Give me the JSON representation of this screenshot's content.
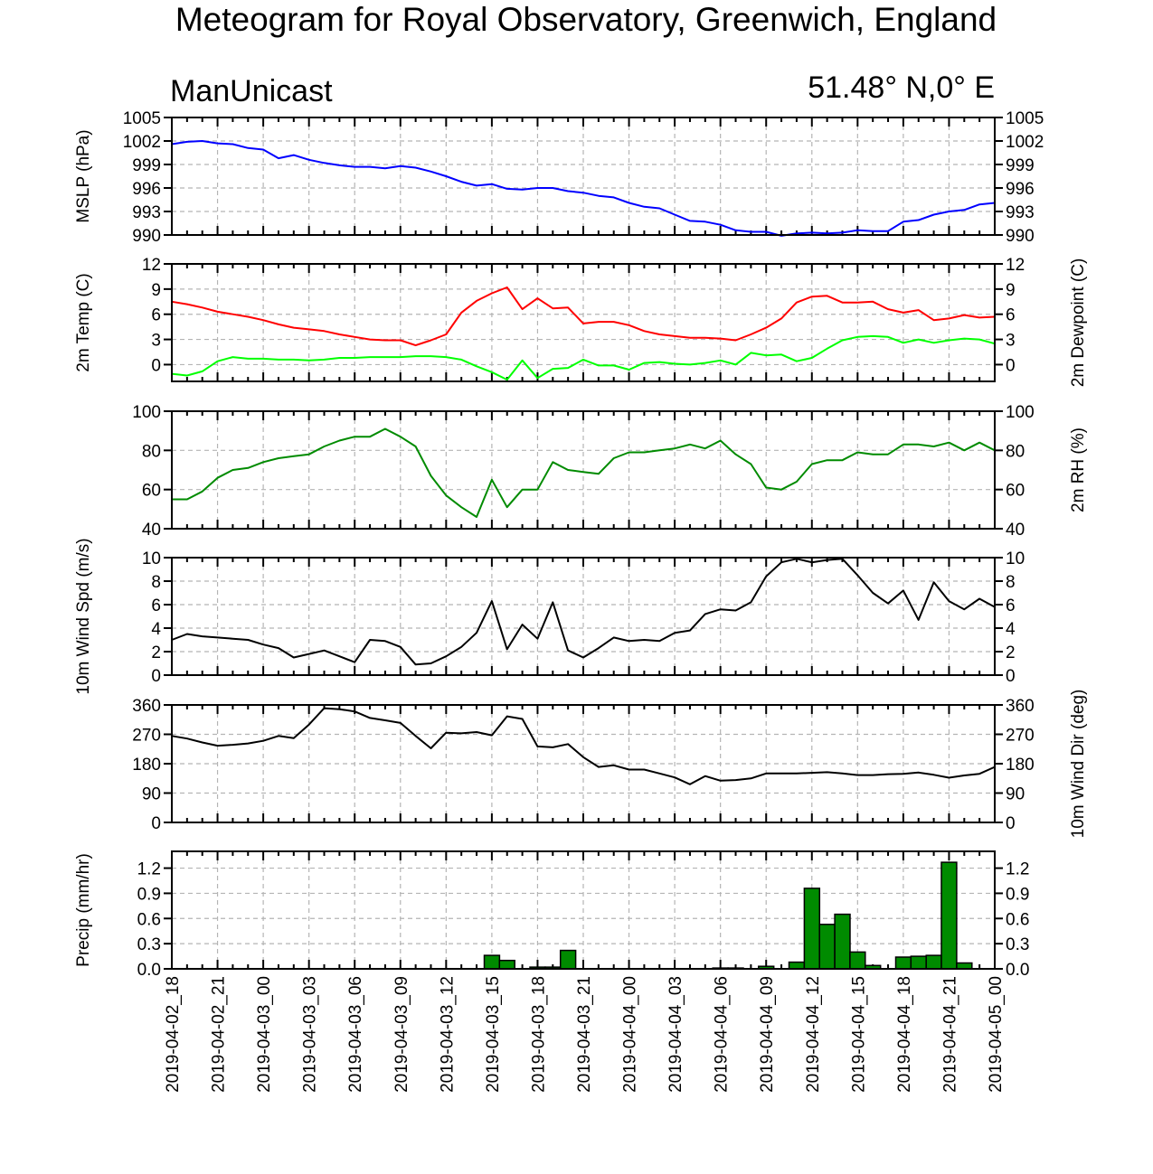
{
  "title": "Meteogram for Royal Observatory, Greenwich, England",
  "model": "ManUnicast",
  "location": "51.48° N,0° E",
  "x_labels": [
    "2019-04-02_18",
    "2019-04-02_21",
    "2019-04-03_00",
    "2019-04-03_03",
    "2019-04-03_06",
    "2019-04-03_09",
    "2019-04-03_12",
    "2019-04-03_15",
    "2019-04-03_18",
    "2019-04-03_21",
    "2019-04-04_00",
    "2019-04-04_03",
    "2019-04-04_06",
    "2019-04-04_09",
    "2019-04-04_12",
    "2019-04-04_15",
    "2019-04-04_18",
    "2019-04-04_21",
    "2019-04-05_00"
  ],
  "chart_data": [
    {
      "type": "line",
      "ylabel": "MSLP (hPa)",
      "ylim": [
        990,
        1005
      ],
      "yticks": [
        "1005",
        "1002",
        "999",
        "996",
        "993",
        "990"
      ],
      "grid": true,
      "x": [
        0,
        1,
        2,
        3,
        4,
        5,
        6,
        7,
        8,
        9,
        10,
        11,
        12,
        13,
        14,
        15,
        16,
        17,
        18,
        19,
        20,
        21,
        22,
        23,
        24,
        25,
        26,
        27,
        28,
        29,
        30,
        31,
        32,
        33,
        34,
        35,
        36,
        37,
        38,
        39,
        40,
        41,
        42,
        43,
        44,
        45,
        46,
        47,
        48,
        49,
        50,
        51,
        52,
        53,
        54
      ],
      "series": [
        {
          "color": "#0000ff",
          "values": [
            1001.6,
            1001.9,
            1002.0,
            1001.7,
            1001.6,
            1001.1,
            1000.9,
            999.8,
            1000.2,
            999.6,
            999.2,
            998.9,
            998.7,
            998.7,
            998.5,
            998.8,
            998.6,
            998.1,
            997.5,
            996.8,
            996.3,
            996.5,
            995.9,
            995.8,
            996.0,
            996.0,
            995.6,
            995.4,
            995.0,
            994.8,
            994.1,
            993.6,
            993.4,
            992.6,
            991.8,
            991.7,
            991.3,
            990.6,
            990.4,
            990.4,
            989.9,
            990.2,
            990.3,
            990.2,
            990.3,
            990.6,
            990.5,
            990.5,
            991.7,
            991.9,
            992.6,
            993.0,
            993.2,
            993.9,
            994.1
          ]
        }
      ]
    },
    {
      "type": "line",
      "ylabel": "2m Temp (C)",
      "ylabel_right": "2m Dewpoint (C)",
      "ylim": [
        -2,
        12
      ],
      "yticks": [
        "12",
        "9",
        "6",
        "3",
        "0"
      ],
      "grid": true,
      "x": [
        0,
        1,
        2,
        3,
        4,
        5,
        6,
        7,
        8,
        9,
        10,
        11,
        12,
        13,
        14,
        15,
        16,
        17,
        18,
        19,
        20,
        21,
        22,
        23,
        24,
        25,
        26,
        27,
        28,
        29,
        30,
        31,
        32,
        33,
        34,
        35,
        36,
        37,
        38,
        39,
        40,
        41,
        42,
        43,
        44,
        45,
        46,
        47,
        48,
        49,
        50,
        51,
        52,
        53,
        54
      ],
      "series": [
        {
          "color": "#ff0000",
          "values": [
            7.5,
            7.2,
            6.8,
            6.3,
            6.0,
            5.7,
            5.3,
            4.8,
            4.4,
            4.2,
            4.0,
            3.6,
            3.3,
            3.0,
            2.9,
            2.9,
            2.3,
            2.9,
            3.6,
            6.2,
            7.6,
            8.5,
            9.2,
            6.6,
            7.9,
            6.7,
            6.8,
            4.9,
            5.1,
            5.1,
            4.7,
            4.0,
            3.6,
            3.4,
            3.2,
            3.2,
            3.1,
            2.9,
            3.6,
            4.4,
            5.5,
            7.4,
            8.1,
            8.2,
            7.4,
            7.4,
            7.5,
            6.6,
            6.2,
            6.5,
            5.3,
            5.5,
            5.9,
            5.6,
            5.7
          ]
        },
        {
          "color": "#00ff00",
          "values": [
            -1.1,
            -1.3,
            -0.8,
            0.4,
            0.9,
            0.7,
            0.7,
            0.6,
            0.6,
            0.5,
            0.6,
            0.8,
            0.8,
            0.9,
            0.9,
            0.9,
            1.0,
            1.0,
            0.9,
            0.6,
            -0.2,
            -0.9,
            -1.8,
            0.5,
            -1.6,
            -0.5,
            -0.4,
            0.6,
            -0.1,
            -0.1,
            -0.6,
            0.2,
            0.3,
            0.1,
            0.0,
            0.2,
            0.5,
            0.0,
            1.4,
            1.1,
            1.2,
            0.4,
            0.8,
            1.9,
            2.9,
            3.3,
            3.4,
            3.3,
            2.6,
            3.0,
            2.6,
            2.9,
            3.1,
            3.0,
            2.5
          ]
        }
      ]
    },
    {
      "type": "line",
      "ylabel_right": "2m RH (%)",
      "ylim": [
        40,
        100
      ],
      "yticks": [
        "100",
        "80",
        "60",
        "40"
      ],
      "grid": true,
      "x": [
        0,
        1,
        2,
        3,
        4,
        5,
        6,
        7,
        8,
        9,
        10,
        11,
        12,
        13,
        14,
        15,
        16,
        17,
        18,
        19,
        20,
        21,
        22,
        23,
        24,
        25,
        26,
        27,
        28,
        29,
        30,
        31,
        32,
        33,
        34,
        35,
        36,
        37,
        38,
        39,
        40,
        41,
        42,
        43,
        44,
        45,
        46,
        47,
        48,
        49,
        50,
        51,
        52,
        53,
        54
      ],
      "series": [
        {
          "color": "#008b00",
          "values": [
            55,
            55,
            59,
            66,
            70,
            71,
            74,
            76,
            77,
            78,
            82,
            85,
            87,
            87,
            91,
            87,
            82,
            67,
            57,
            51,
            46,
            65,
            51,
            60,
            60,
            74,
            70,
            69,
            68,
            76,
            79,
            79,
            80,
            81,
            83,
            81,
            85,
            78,
            73,
            61,
            60,
            64,
            73,
            75,
            75,
            79,
            78,
            78,
            83,
            83,
            82,
            84,
            80,
            84,
            80
          ]
        }
      ]
    },
    {
      "type": "line",
      "ylabel": "10m Wind Spd (m/s)",
      "ylim": [
        0,
        10
      ],
      "yticks": [
        "10",
        "8",
        "6",
        "4",
        "2",
        "0"
      ],
      "grid": true,
      "x": [
        0,
        1,
        2,
        3,
        4,
        5,
        6,
        7,
        8,
        9,
        10,
        11,
        12,
        13,
        14,
        15,
        16,
        17,
        18,
        19,
        20,
        21,
        22,
        23,
        24,
        25,
        26,
        27,
        28,
        29,
        30,
        31,
        32,
        33,
        34,
        35,
        36,
        37,
        38,
        39,
        40,
        41,
        42,
        43,
        44,
        45,
        46,
        47,
        48,
        49,
        50,
        51,
        52,
        53,
        54
      ],
      "series": [
        {
          "color": "#000000",
          "values": [
            3.0,
            3.5,
            3.3,
            3.2,
            3.1,
            3.0,
            2.6,
            2.3,
            1.5,
            1.8,
            2.1,
            1.6,
            1.1,
            3.0,
            2.9,
            2.4,
            0.9,
            1.0,
            1.6,
            2.4,
            3.6,
            6.3,
            2.2,
            4.3,
            3.1,
            6.2,
            2.1,
            1.5,
            2.3,
            3.2,
            2.9,
            3.0,
            2.9,
            3.6,
            3.8,
            5.2,
            5.6,
            5.5,
            6.2,
            8.4,
            9.6,
            9.9,
            9.6,
            9.8,
            9.9,
            8.5,
            7.0,
            6.1,
            7.2,
            4.7,
            7.9,
            6.3,
            5.6,
            6.5,
            5.8
          ]
        }
      ]
    },
    {
      "type": "line",
      "ylabel_right": "10m Wind Dir (deg)",
      "ylim": [
        0,
        360
      ],
      "yticks": [
        "360",
        "270",
        "180",
        "90",
        "0"
      ],
      "grid": true,
      "x": [
        0,
        1,
        2,
        3,
        4,
        5,
        6,
        7,
        8,
        9,
        10,
        11,
        12,
        13,
        14,
        15,
        16,
        17,
        18,
        19,
        20,
        21,
        22,
        23,
        24,
        25,
        26,
        27,
        28,
        29,
        30,
        31,
        32,
        33,
        34,
        35,
        36,
        37,
        38,
        39,
        40,
        41,
        42,
        43,
        44,
        45,
        46,
        47,
        48,
        49,
        50,
        51,
        52,
        53,
        54
      ],
      "series": [
        {
          "color": "#000000",
          "values": [
            265,
            257,
            245,
            235,
            238,
            242,
            250,
            265,
            258,
            300,
            350,
            347,
            340,
            320,
            313,
            305,
            265,
            227,
            275,
            273,
            277,
            267,
            325,
            317,
            233,
            230,
            240,
            200,
            170,
            175,
            162,
            162,
            150,
            138,
            117,
            142,
            128,
            130,
            135,
            150,
            150,
            150,
            152,
            154,
            150,
            145,
            145,
            148,
            149,
            153,
            146,
            137,
            144,
            149,
            170
          ]
        }
      ]
    },
    {
      "type": "bar",
      "ylabel": "Precip (mm/hr)",
      "ylim": [
        0,
        1.4
      ],
      "yticks": [
        "1.2",
        "0.9",
        "0.6",
        "0.3",
        "0.0"
      ],
      "grid": true,
      "color": "#008b00",
      "bins": [
        {
          "x": 21,
          "value": 0.16
        },
        {
          "x": 22,
          "value": 0.1
        },
        {
          "x": 24,
          "value": 0.02
        },
        {
          "x": 25,
          "value": 0.02
        },
        {
          "x": 26,
          "value": 0.22
        },
        {
          "x": 36,
          "value": 0.01
        },
        {
          "x": 37,
          "value": 0.01
        },
        {
          "x": 39,
          "value": 0.03
        },
        {
          "x": 41,
          "value": 0.08
        },
        {
          "x": 42,
          "value": 0.96
        },
        {
          "x": 43,
          "value": 0.53
        },
        {
          "x": 44,
          "value": 0.65
        },
        {
          "x": 45,
          "value": 0.2
        },
        {
          "x": 46,
          "value": 0.04
        },
        {
          "x": 48,
          "value": 0.14
        },
        {
          "x": 49,
          "value": 0.15
        },
        {
          "x": 50,
          "value": 0.16
        },
        {
          "x": 51,
          "value": 1.27
        },
        {
          "x": 52,
          "value": 0.07
        }
      ]
    }
  ]
}
